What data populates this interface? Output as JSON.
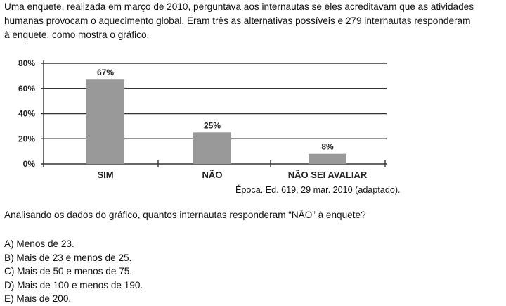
{
  "intro_lines": [
    "Uma enquete, realizada em março de 2010, perguntava aos internautas se eles acreditavam que as atividades",
    "humanas provocam o aquecimento global. Eram três as alternativas possíveis e 279 internautas responderam",
    "à enquete, como mostra o gráfico."
  ],
  "chart_data": {
    "type": "bar",
    "categories": [
      "SIM",
      "NÃO",
      "NÃO SEI AVALIAR"
    ],
    "values": [
      67,
      25,
      8
    ],
    "data_labels": [
      "67%",
      "25%",
      "8%"
    ],
    "y_ticks": [
      "0%",
      "20%",
      "40%",
      "60%",
      "80%"
    ],
    "ylim": [
      0,
      80
    ],
    "grid": true,
    "title": "",
    "xlabel": "",
    "ylabel": "",
    "bar_color": "#999999"
  },
  "source": "Época. Ed. 619, 29 mar. 2010 (adaptado).",
  "question": "Analisando os dados do gráfico, quantos internautas responderam “NÃO” à enquete?",
  "options": [
    "A) Menos de 23.",
    "B) Mais de 23 e menos de 25.",
    "C) Mais de 50 e menos de 75.",
    "D) Mais de 100 e menos de 190.",
    "E) Mais de 200."
  ]
}
